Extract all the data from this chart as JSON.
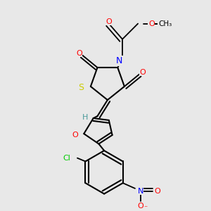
{
  "background_color": "#e8e8e8",
  "atom_colors": {
    "C": "#000000",
    "H": "#4a9a9a",
    "N": "#0000ff",
    "O": "#ff0000",
    "S": "#cccc00",
    "Cl": "#00cc00"
  },
  "bond_color": "#000000"
}
